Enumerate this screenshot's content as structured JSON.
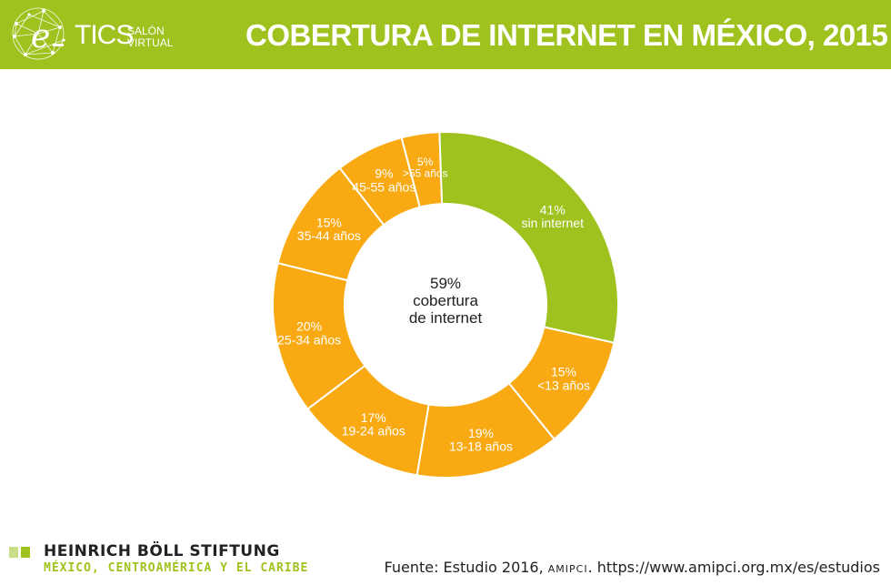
{
  "header": {
    "title": "COBERTURA DE INTERNET EN MÉXICO, 2015",
    "logo_main": "TICS",
    "logo_sub_1": "SALÓN",
    "logo_sub_2": "VIRTUAL",
    "logo_letter": "e"
  },
  "colors": {
    "header_bg": "#9fc21e",
    "coverage": "#f9aa13",
    "no_internet": "#9fc21e",
    "slice_border": "#ffffff",
    "label_text": "#ffffff",
    "center_text": "#222222"
  },
  "chart_data": {
    "type": "pie",
    "style": "donut",
    "title": "COBERTURA DE INTERNET EN MÉXICO, 2015",
    "center_label": [
      "59%",
      "cobertura",
      "de internet"
    ],
    "start_angle_deg": 92,
    "slices": [
      {
        "pct": "5%",
        "label": ">55 años",
        "value": 5,
        "group": "coverage"
      },
      {
        "pct": "9%",
        "label": "45-55 años",
        "value": 9,
        "group": "coverage"
      },
      {
        "pct": "15%",
        "label": "35-44 años",
        "value": 15,
        "group": "coverage"
      },
      {
        "pct": "20%",
        "label": "25-34 años",
        "value": 20,
        "group": "coverage"
      },
      {
        "pct": "17%",
        "label": "19-24 años",
        "value": 17,
        "group": "coverage"
      },
      {
        "pct": "19%",
        "label": "13-18 años",
        "value": 19,
        "group": "coverage"
      },
      {
        "pct": "15%",
        "label": "<13 años",
        "value": 15,
        "group": "coverage"
      },
      {
        "pct": "41%",
        "label": "sin internet",
        "value": 41,
        "group": "no_internet"
      }
    ]
  },
  "footer": {
    "org_name": "HEINRICH BÖLL STIFTUNG",
    "org_region": "MÉXICO, CENTROAMÉRICA Y EL CARIBE",
    "source_prefix": "Fuente: Estudio 2016, ",
    "source_org": "AMIPCI",
    "source_suffix": ". https://www.amipci.org.mx/es/estudios"
  }
}
